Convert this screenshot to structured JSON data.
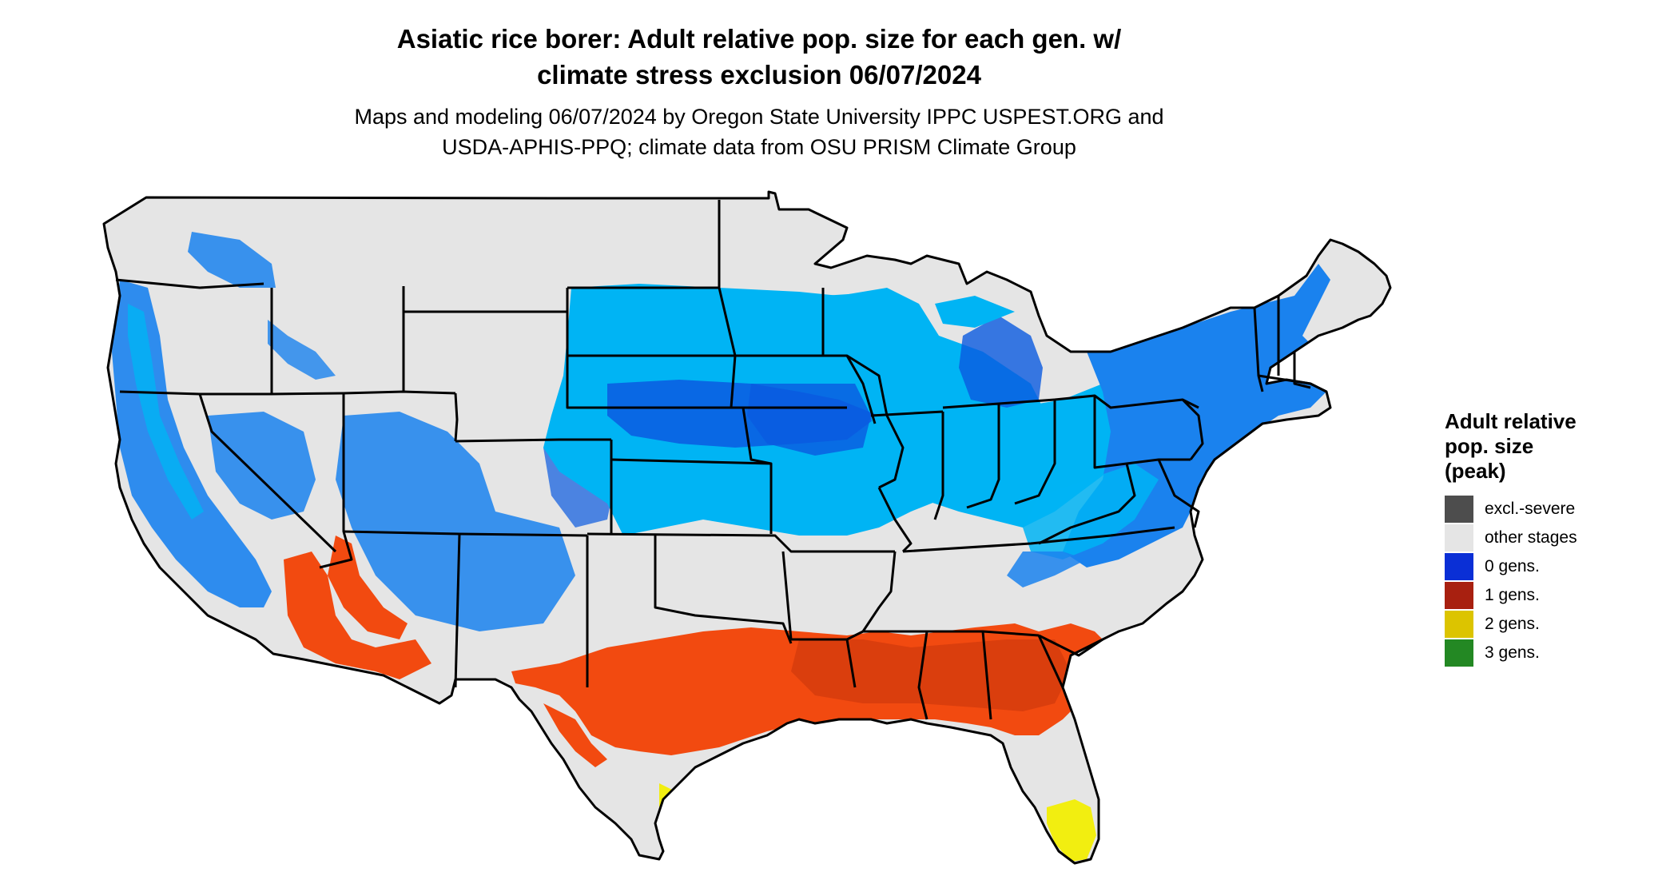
{
  "title_line1": "Asiatic rice borer: Adult relative pop. size for each gen. w/",
  "title_line2": "climate stress exclusion 06/07/2024",
  "subtitle_line1": "Maps and modeling 06/07/2024 by Oregon State University IPPC USPEST.ORG and",
  "subtitle_line2": "USDA-APHIS-PPQ; climate data from OSU PRISM Climate Group",
  "legend": {
    "title_line1": "Adult relative",
    "title_line2": "pop. size",
    "title_line3": "(peak)",
    "items": [
      {
        "label": "excl.-severe",
        "color": "#4d4d4d"
      },
      {
        "label": "other stages",
        "color": "#e5e5e5"
      },
      {
        "label": "0 gens.",
        "color": "#0a2fd6"
      },
      {
        "label": "1 gens.",
        "color": "#a82010"
      },
      {
        "label": "2 gens.",
        "color": "#dcc400"
      },
      {
        "label": "3 gens.",
        "color": "#238823"
      }
    ]
  },
  "colors": {
    "land": "#e5e5e5",
    "blue_light": "#00b4f4",
    "blue_mid": "#1a82ee",
    "blue_dark": "#0a5ae0",
    "orange": "#f24a10",
    "orange_dark": "#d33b0c",
    "yellow": "#f2ee10",
    "border": "#000000"
  }
}
